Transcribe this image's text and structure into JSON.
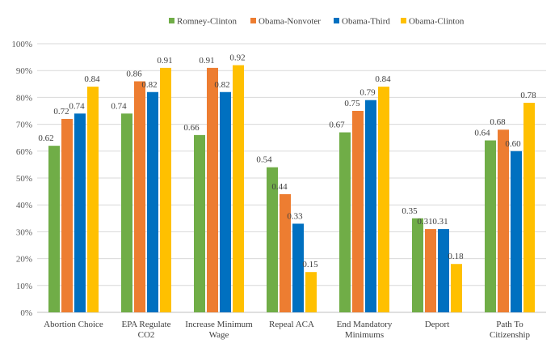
{
  "chart_data": {
    "type": "bar",
    "title": "",
    "xlabel": "",
    "ylabel": "",
    "ylim": [
      0,
      1
    ],
    "yticks": [
      "0%",
      "10%",
      "20%",
      "30%",
      "40%",
      "50%",
      "60%",
      "70%",
      "80%",
      "90%",
      "100%"
    ],
    "grid": true,
    "legend_position": "top-right",
    "categories": [
      [
        "Abortion Choice"
      ],
      [
        "EPA Regulate",
        "CO2"
      ],
      [
        "Increase Minimum",
        "Wage"
      ],
      [
        "Repeal ACA"
      ],
      [
        "End Mandatory",
        "Minimums"
      ],
      [
        "Deport"
      ],
      [
        "Path To",
        "Citizenship"
      ]
    ],
    "series": [
      {
        "name": "Romney-Clinton",
        "color": "#70ad47",
        "values": [
          0.62,
          0.74,
          0.66,
          0.54,
          0.67,
          0.35,
          0.64
        ]
      },
      {
        "name": "Obama-Nonvoter",
        "color": "#ed7d31",
        "values": [
          0.72,
          0.86,
          0.91,
          0.44,
          0.75,
          0.31,
          0.68
        ]
      },
      {
        "name": "Obama-Third",
        "color": "#0070c0",
        "values": [
          0.74,
          0.82,
          0.82,
          0.33,
          0.79,
          0.31,
          0.6
        ]
      },
      {
        "name": "Obama-Clinton",
        "color": "#ffc000",
        "values": [
          0.84,
          0.91,
          0.92,
          0.15,
          0.84,
          0.18,
          0.78
        ]
      }
    ]
  }
}
